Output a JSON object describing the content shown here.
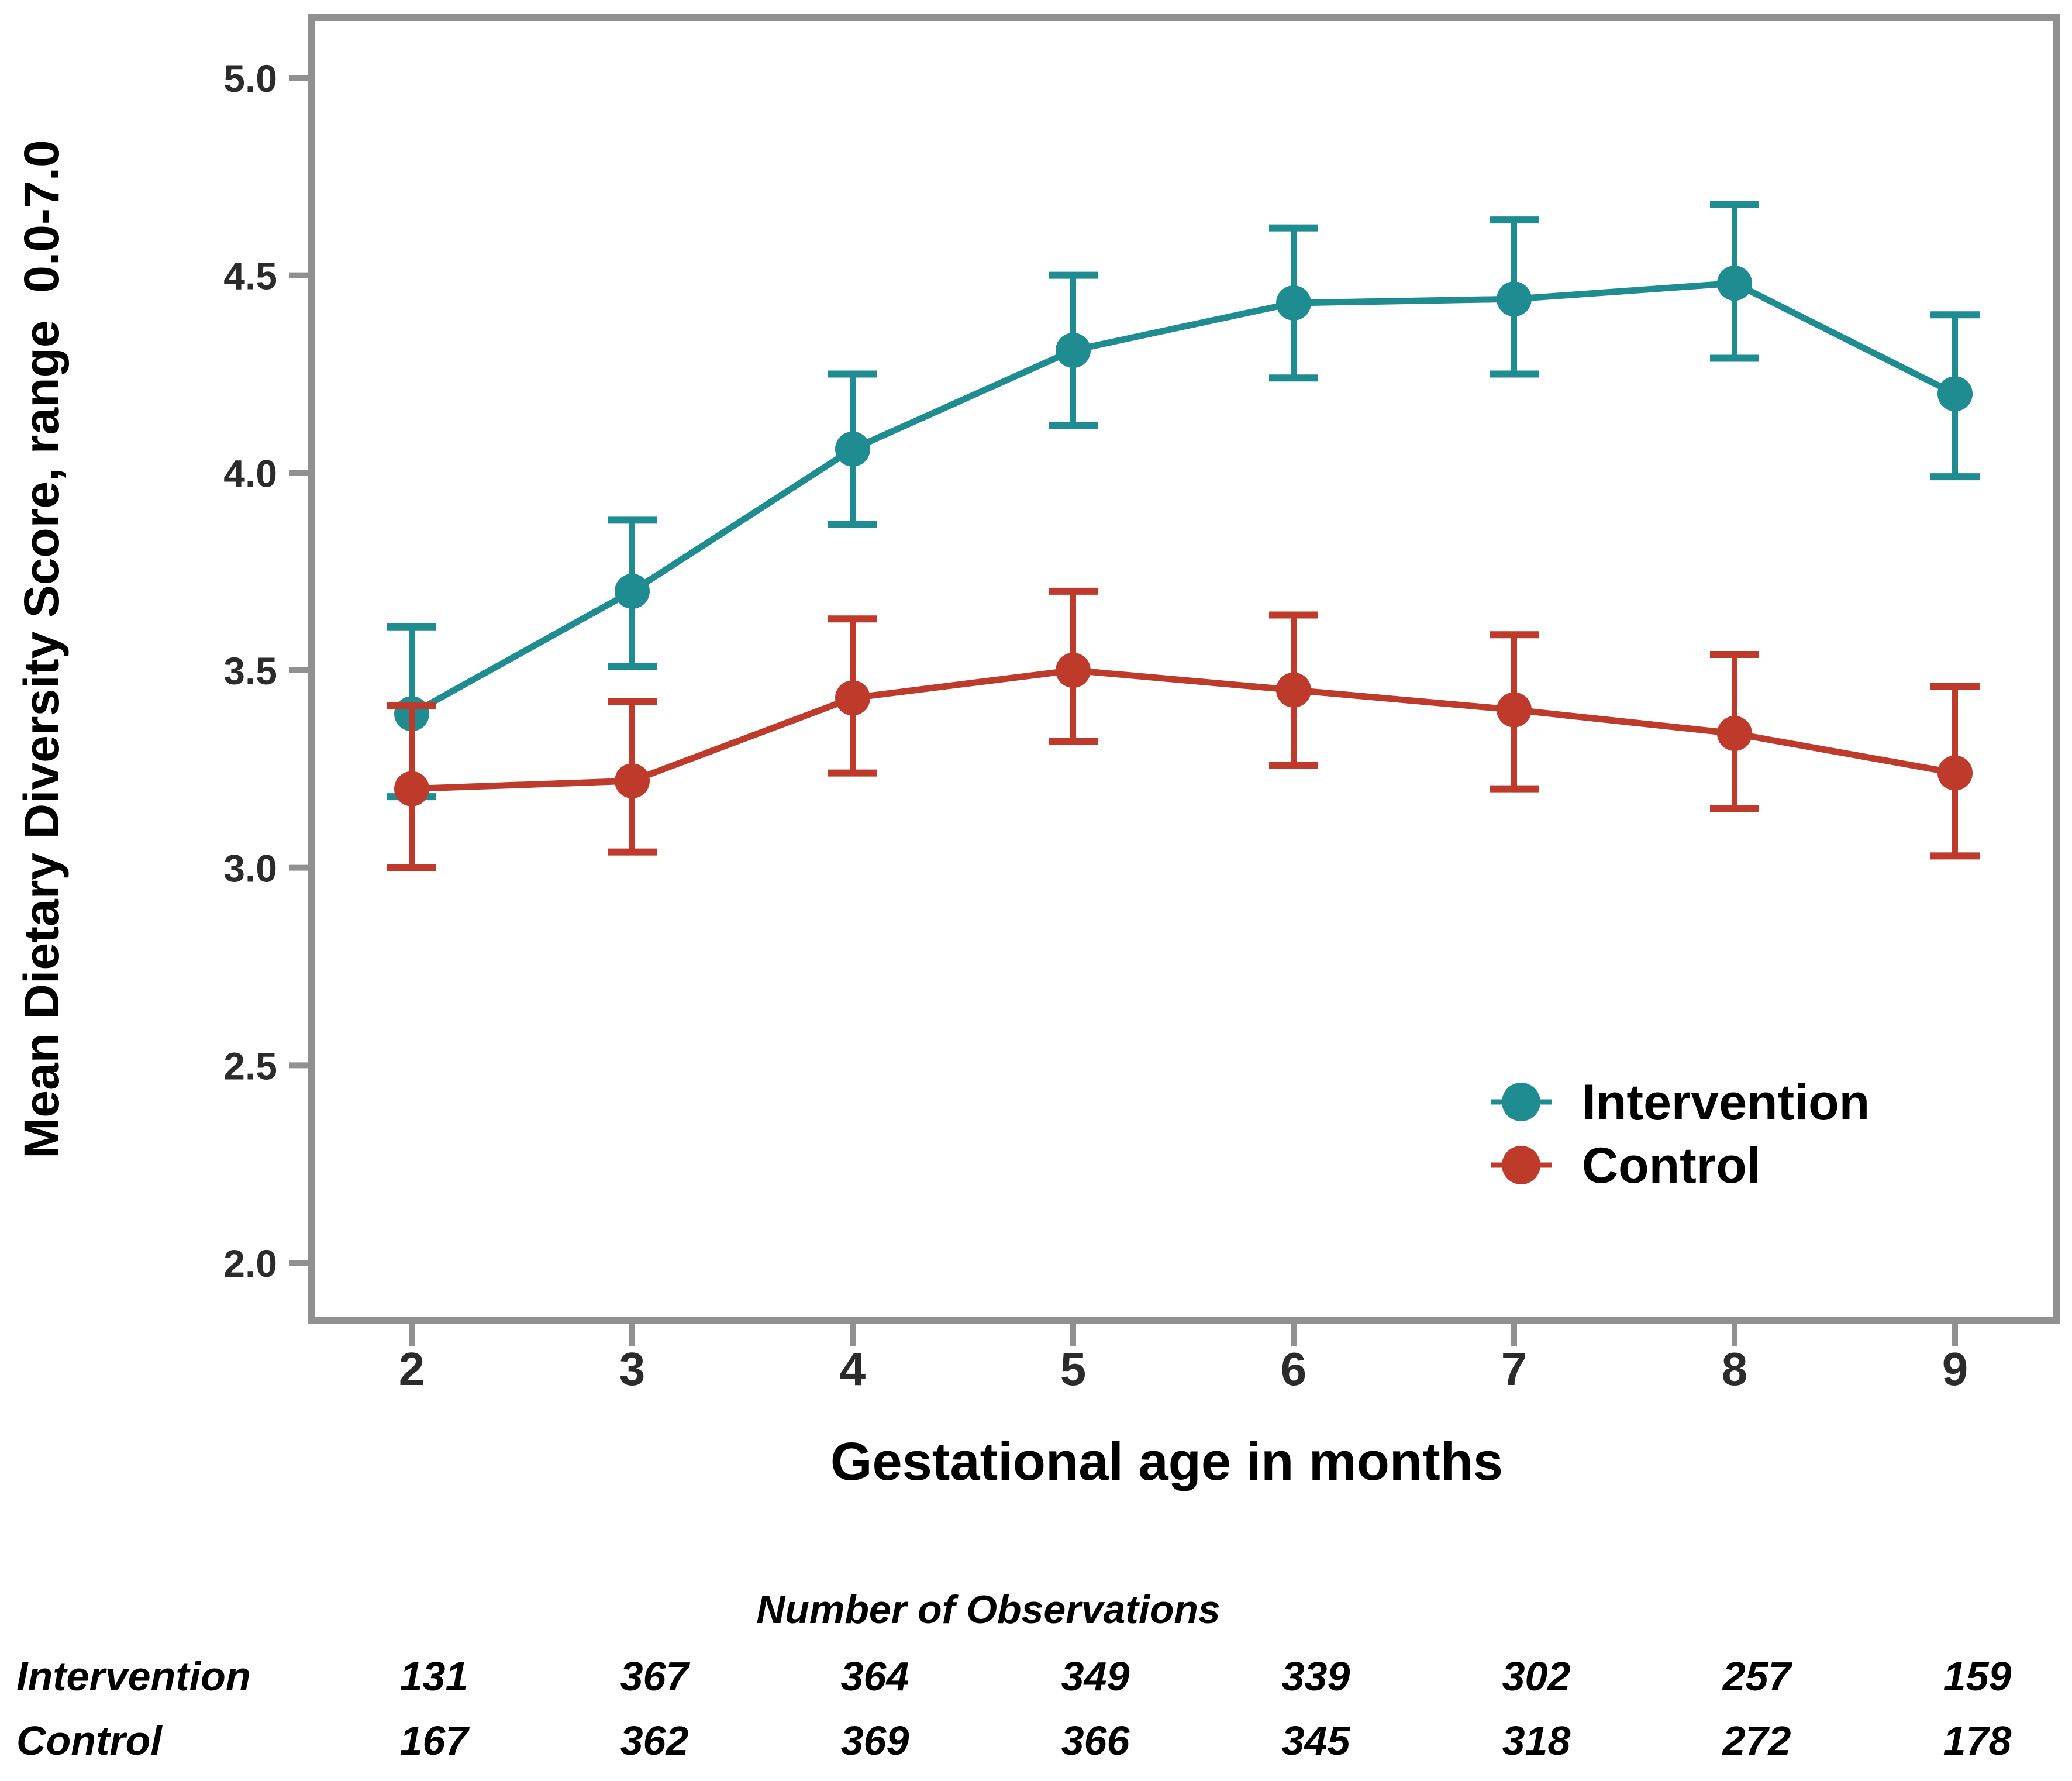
{
  "figure": {
    "y_axis": {
      "title": "Mean Dietary Diversity Score, range  0.0-7.0",
      "tick_labels": [
        "5.0",
        "4.5",
        "4.0",
        "3.5",
        "3.0",
        "2.5",
        "2.0"
      ]
    },
    "x_axis": {
      "title": "Gestational age in months",
      "tick_labels": [
        "2",
        "3",
        "4",
        "5",
        "6",
        "7",
        "8",
        "9"
      ]
    },
    "legend": [
      {
        "label": "Intervention",
        "color": "#1E8C90"
      },
      {
        "label": "Control",
        "color": "#BE3A2B"
      }
    ]
  },
  "chart_data": {
    "type": "line",
    "title": "",
    "xlabel": "Gestational age in months",
    "ylabel": "Mean Dietary Diversity Score, range 0.0-7.0",
    "x": [
      2,
      3,
      4,
      5,
      6,
      7,
      8,
      9
    ],
    "ylim": [
      1.85,
      5.15
    ],
    "yticks": [
      5.0,
      4.5,
      4.0,
      3.5,
      3.0,
      2.5,
      2.0
    ],
    "grid": false,
    "legend_position": "inside lower right",
    "error_bars": true,
    "series": [
      {
        "name": "Intervention",
        "color": "#1E8C90",
        "values": [
          3.39,
          3.7,
          4.06,
          4.31,
          4.43,
          4.44,
          4.48,
          4.2
        ],
        "ci_low": [
          3.18,
          3.51,
          3.87,
          4.12,
          4.24,
          4.25,
          4.29,
          3.99
        ],
        "ci_high": [
          3.61,
          3.88,
          4.25,
          4.5,
          4.62,
          4.64,
          4.68,
          4.4
        ]
      },
      {
        "name": "Control",
        "color": "#BE3A2B",
        "values": [
          3.2,
          3.22,
          3.43,
          3.5,
          3.45,
          3.4,
          3.34,
          3.24
        ],
        "ci_low": [
          3.0,
          3.04,
          3.24,
          3.32,
          3.26,
          3.2,
          3.15,
          3.03
        ],
        "ci_high": [
          3.41,
          3.42,
          3.63,
          3.7,
          3.64,
          3.59,
          3.54,
          3.46
        ]
      }
    ]
  },
  "observations": {
    "title": "Number of Observations",
    "rows": [
      {
        "label": "Intervention",
        "values": [
          "131",
          "367",
          "364",
          "349",
          "339",
          "302",
          "257",
          "159"
        ]
      },
      {
        "label": "Control",
        "values": [
          "167",
          "362",
          "369",
          "366",
          "345",
          "318",
          "272",
          "178"
        ]
      }
    ]
  },
  "colors": {
    "intervention": "#1E8C90",
    "control": "#BE3A2B",
    "axis": "#909090",
    "text": "#2b2b2b"
  }
}
